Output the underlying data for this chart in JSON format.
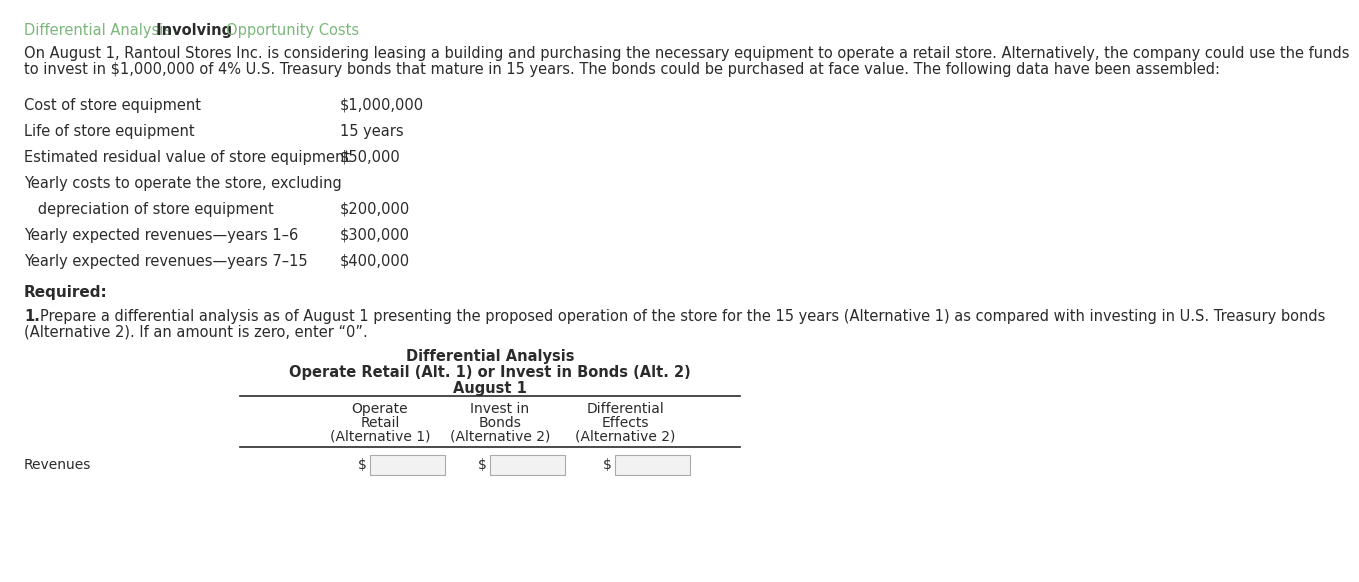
{
  "title_green1": "Differential Analysis",
  "title_bold": " Involving ",
  "title_green2": "Opportunity Costs",
  "intro_line1": "On August 1, Rantoul Stores Inc. is considering leasing a building and purchasing the necessary equipment to operate a retail store. Alternatively, the company could use the funds",
  "intro_line2": "to invest in $1,000,000 of 4% U.S. Treasury bonds that mature in 15 years. The bonds could be purchased at face value. The following data have been assembled:",
  "data_items": [
    {
      "label": "Cost of store equipment",
      "value": "$1,000,000"
    },
    {
      "label": "Life of store equipment",
      "value": "15 years"
    },
    {
      "label": "Estimated residual value of store equipment",
      "value": "$50,000"
    },
    {
      "label": "Yearly costs to operate the store, excluding",
      "value": ""
    },
    {
      "label": "   depreciation of store equipment",
      "value": "$200,000"
    },
    {
      "label": "Yearly expected revenues—years 1–6",
      "value": "$300,000"
    },
    {
      "label": "Yearly expected revenues—years 7–15",
      "value": "$400,000"
    }
  ],
  "required_label": "Required:",
  "inst_line1": "Prepare a differential analysis as of August 1 presenting the proposed operation of the store for the 15 years (Alternative 1) as compared with investing in U.S. Treasury bonds",
  "inst_line2": "(Alternative 2). If an amount is zero, enter “0”.",
  "table_title1": "Differential Analysis",
  "table_title2": "Operate Retail (Alt. 1) or Invest in Bonds (Alt. 2)",
  "table_title3": "August 1",
  "col_headers": [
    [
      "Operate",
      "Retail",
      "(Alternative 1)"
    ],
    [
      "Invest in",
      "Bonds",
      "(Alternative 2)"
    ],
    [
      "Differential",
      "Effects",
      "(Alternative 2)"
    ]
  ],
  "row_label": "Revenues",
  "bg_color": "#ffffff",
  "text_color": "#2b2b2b",
  "green_color": "#7ab87a",
  "box_border": "#aaaaaa",
  "box_fill": "#f2f2f2"
}
